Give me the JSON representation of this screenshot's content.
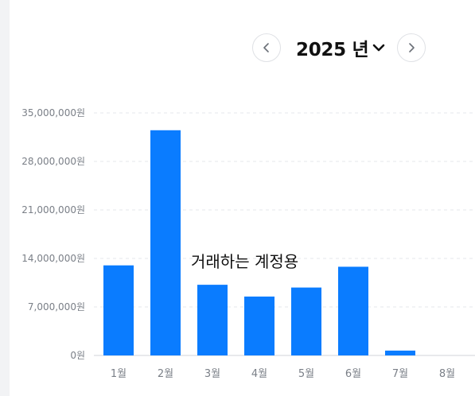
{
  "header": {
    "year_label": "2025 년"
  },
  "overlay_text": "거래하는 계정용",
  "colors": {
    "bar": "#0a7cff",
    "grid": "#e5e7eb",
    "tick_text": "#7a7f87",
    "axis": "#d0d3d8"
  },
  "chart_data": {
    "type": "bar",
    "title": "",
    "xlabel": "",
    "ylabel": "",
    "categories": [
      "1월",
      "2월",
      "3월",
      "4월",
      "5월",
      "6월",
      "7월",
      "8월"
    ],
    "values": [
      13000000,
      32500000,
      10200000,
      8500000,
      9800000,
      12800000,
      700000,
      0
    ],
    "ylim": [
      0,
      35000000
    ],
    "yticks": [
      0,
      7000000,
      14000000,
      21000000,
      28000000,
      35000000
    ],
    "ytick_labels": [
      "0원",
      "7,000,000원",
      "14,000,000원",
      "21,000,000원",
      "28,000,000원",
      "35,000,000원"
    ],
    "grid": true,
    "legend": "none"
  }
}
